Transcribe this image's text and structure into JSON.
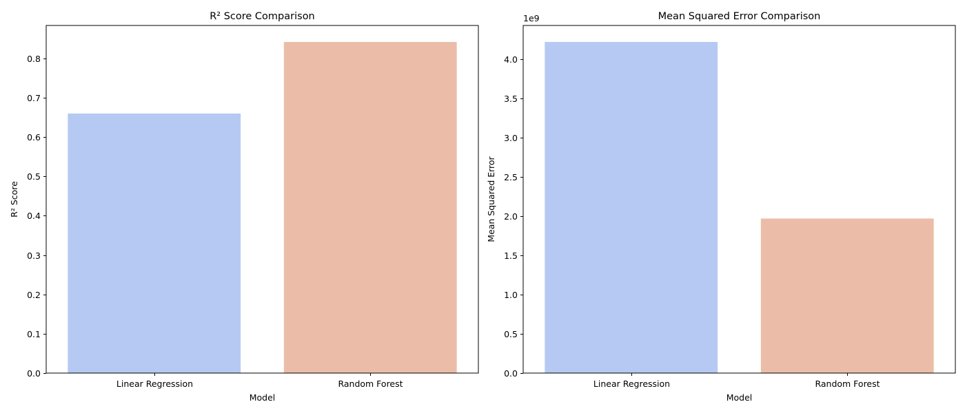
{
  "chart_data": [
    {
      "type": "bar",
      "title": "R² Score Comparison",
      "xlabel": "Model",
      "ylabel": "R² Score",
      "categories": [
        "Linear Regression",
        "Random Forest"
      ],
      "values": [
        0.66,
        0.842
      ],
      "colors": [
        "#b5c9f3",
        "#ebbda8"
      ],
      "ylim": [
        0,
        0.884
      ],
      "yticks": [
        0.0,
        0.1,
        0.2,
        0.3,
        0.4,
        0.5,
        0.6,
        0.7,
        0.8
      ],
      "ytick_labels": [
        "0.0",
        "0.1",
        "0.2",
        "0.3",
        "0.4",
        "0.5",
        "0.6",
        "0.7",
        "0.8"
      ],
      "offset_text": "",
      "grid": false,
      "legend": "none"
    },
    {
      "type": "bar",
      "title": "Mean Squared Error Comparison",
      "xlabel": "Model",
      "ylabel": "Mean Squared Error",
      "categories": [
        "Linear Regression",
        "Random Forest"
      ],
      "values": [
        4220000000.0,
        1970000000.0
      ],
      "colors": [
        "#b5c9f3",
        "#ebbda8"
      ],
      "ylim": [
        0,
        4430000000.0
      ],
      "yticks": [
        0,
        500000000.0,
        1000000000.0,
        1500000000.0,
        2000000000.0,
        2500000000.0,
        3000000000.0,
        3500000000.0,
        4000000000.0
      ],
      "ytick_labels": [
        "0.0",
        "0.5",
        "1.0",
        "1.5",
        "2.0",
        "2.5",
        "3.0",
        "3.5",
        "4.0"
      ],
      "offset_text": "1e9",
      "grid": false,
      "legend": "none"
    }
  ]
}
